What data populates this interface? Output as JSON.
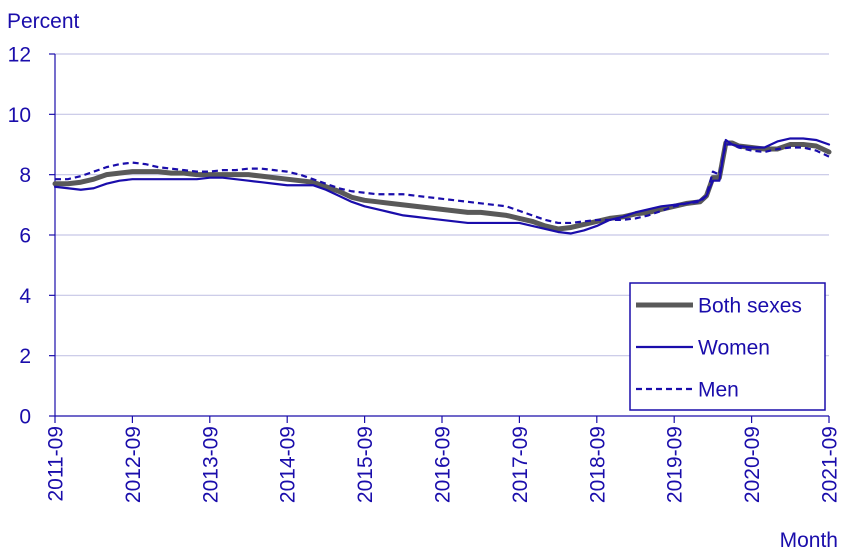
{
  "chart_data": {
    "type": "line",
    "ylabel": "Percent",
    "xlabel": "Month",
    "ylim": [
      0,
      12
    ],
    "yticks": [
      "0",
      "2",
      "4",
      "6",
      "8",
      "10",
      "12"
    ],
    "xticks": [
      "2011-09",
      "2012-09",
      "2013-09",
      "2014-09",
      "2015-09",
      "2016-09",
      "2017-09",
      "2018-09",
      "2019-09",
      "2020-09",
      "2021-09"
    ],
    "grid": true,
    "legend_position": "bottom-right",
    "series": [
      {
        "name": "Both sexes",
        "color": "#595959",
        "style": "thick",
        "points": [
          [
            "2011-09",
            7.7
          ],
          [
            "2011-11",
            7.7
          ],
          [
            "2012-01",
            7.75
          ],
          [
            "2012-03",
            7.85
          ],
          [
            "2012-05",
            8.0
          ],
          [
            "2012-07",
            8.05
          ],
          [
            "2012-09",
            8.1
          ],
          [
            "2012-11",
            8.1
          ],
          [
            "2013-01",
            8.1
          ],
          [
            "2013-03",
            8.05
          ],
          [
            "2013-05",
            8.05
          ],
          [
            "2013-07",
            8.0
          ],
          [
            "2013-09",
            8.0
          ],
          [
            "2013-11",
            8.0
          ],
          [
            "2014-01",
            8.0
          ],
          [
            "2014-03",
            8.0
          ],
          [
            "2014-05",
            7.95
          ],
          [
            "2014-07",
            7.9
          ],
          [
            "2014-09",
            7.85
          ],
          [
            "2014-11",
            7.8
          ],
          [
            "2015-01",
            7.75
          ],
          [
            "2015-03",
            7.6
          ],
          [
            "2015-05",
            7.45
          ],
          [
            "2015-07",
            7.25
          ],
          [
            "2015-09",
            7.15
          ],
          [
            "2015-11",
            7.1
          ],
          [
            "2016-01",
            7.05
          ],
          [
            "2016-03",
            7.0
          ],
          [
            "2016-05",
            6.95
          ],
          [
            "2016-07",
            6.9
          ],
          [
            "2016-09",
            6.85
          ],
          [
            "2016-11",
            6.8
          ],
          [
            "2017-01",
            6.75
          ],
          [
            "2017-03",
            6.75
          ],
          [
            "2017-05",
            6.7
          ],
          [
            "2017-07",
            6.65
          ],
          [
            "2017-09",
            6.55
          ],
          [
            "2017-11",
            6.45
          ],
          [
            "2018-01",
            6.3
          ],
          [
            "2018-03",
            6.2
          ],
          [
            "2018-05",
            6.25
          ],
          [
            "2018-07",
            6.35
          ],
          [
            "2018-09",
            6.45
          ],
          [
            "2018-11",
            6.55
          ],
          [
            "2019-01",
            6.6
          ],
          [
            "2019-03",
            6.7
          ],
          [
            "2019-05",
            6.75
          ],
          [
            "2019-07",
            6.85
          ],
          [
            "2019-09",
            6.95
          ],
          [
            "2019-11",
            7.05
          ],
          [
            "2020-01",
            7.1
          ],
          [
            "2020-02",
            7.3
          ],
          [
            "2020-03",
            7.9
          ],
          [
            "2020-04",
            7.9
          ],
          [
            "2020-05",
            9.05
          ],
          [
            "2020-06",
            9.05
          ],
          [
            "2020-07",
            8.95
          ],
          [
            "2020-09",
            8.9
          ],
          [
            "2020-11",
            8.85
          ],
          [
            "2021-01",
            8.85
          ],
          [
            "2021-03",
            9.0
          ],
          [
            "2021-05",
            9.0
          ],
          [
            "2021-07",
            8.95
          ],
          [
            "2021-09",
            8.75
          ]
        ]
      },
      {
        "name": "Women",
        "color": "#1a0dab",
        "style": "solid",
        "points": [
          [
            "2011-09",
            7.6
          ],
          [
            "2011-11",
            7.55
          ],
          [
            "2012-01",
            7.5
          ],
          [
            "2012-03",
            7.55
          ],
          [
            "2012-05",
            7.7
          ],
          [
            "2012-07",
            7.8
          ],
          [
            "2012-09",
            7.85
          ],
          [
            "2012-11",
            7.85
          ],
          [
            "2013-01",
            7.85
          ],
          [
            "2013-03",
            7.85
          ],
          [
            "2013-05",
            7.85
          ],
          [
            "2013-07",
            7.85
          ],
          [
            "2013-09",
            7.9
          ],
          [
            "2013-11",
            7.9
          ],
          [
            "2014-01",
            7.85
          ],
          [
            "2014-03",
            7.8
          ],
          [
            "2014-05",
            7.75
          ],
          [
            "2014-07",
            7.7
          ],
          [
            "2014-09",
            7.65
          ],
          [
            "2014-11",
            7.65
          ],
          [
            "2015-01",
            7.65
          ],
          [
            "2015-03",
            7.5
          ],
          [
            "2015-05",
            7.3
          ],
          [
            "2015-07",
            7.1
          ],
          [
            "2015-09",
            6.95
          ],
          [
            "2015-11",
            6.85
          ],
          [
            "2016-01",
            6.75
          ],
          [
            "2016-03",
            6.65
          ],
          [
            "2016-05",
            6.6
          ],
          [
            "2016-07",
            6.55
          ],
          [
            "2016-09",
            6.5
          ],
          [
            "2016-11",
            6.45
          ],
          [
            "2017-01",
            6.4
          ],
          [
            "2017-03",
            6.4
          ],
          [
            "2017-05",
            6.4
          ],
          [
            "2017-07",
            6.4
          ],
          [
            "2017-09",
            6.4
          ],
          [
            "2017-11",
            6.3
          ],
          [
            "2018-01",
            6.2
          ],
          [
            "2018-03",
            6.1
          ],
          [
            "2018-05",
            6.05
          ],
          [
            "2018-07",
            6.15
          ],
          [
            "2018-09",
            6.3
          ],
          [
            "2018-11",
            6.5
          ],
          [
            "2019-01",
            6.6
          ],
          [
            "2019-03",
            6.75
          ],
          [
            "2019-05",
            6.85
          ],
          [
            "2019-07",
            6.95
          ],
          [
            "2019-09",
            7.0
          ],
          [
            "2019-11",
            7.05
          ],
          [
            "2020-01",
            7.15
          ],
          [
            "2020-02",
            7.3
          ],
          [
            "2020-03",
            7.8
          ],
          [
            "2020-04",
            7.8
          ],
          [
            "2020-05",
            9.15
          ],
          [
            "2020-06",
            9.0
          ],
          [
            "2020-07",
            8.95
          ],
          [
            "2020-09",
            8.9
          ],
          [
            "2020-11",
            8.9
          ],
          [
            "2021-01",
            9.1
          ],
          [
            "2021-03",
            9.2
          ],
          [
            "2021-05",
            9.2
          ],
          [
            "2021-07",
            9.15
          ],
          [
            "2021-09",
            9.0
          ]
        ]
      },
      {
        "name": "Men",
        "color": "#1a0dab",
        "style": "dashed",
        "points": [
          [
            "2011-09",
            7.85
          ],
          [
            "2011-11",
            7.85
          ],
          [
            "2012-01",
            7.95
          ],
          [
            "2012-03",
            8.1
          ],
          [
            "2012-05",
            8.25
          ],
          [
            "2012-07",
            8.35
          ],
          [
            "2012-09",
            8.4
          ],
          [
            "2012-11",
            8.35
          ],
          [
            "2013-01",
            8.25
          ],
          [
            "2013-03",
            8.2
          ],
          [
            "2013-05",
            8.15
          ],
          [
            "2013-07",
            8.1
          ],
          [
            "2013-09",
            8.1
          ],
          [
            "2013-11",
            8.15
          ],
          [
            "2014-01",
            8.15
          ],
          [
            "2014-03",
            8.2
          ],
          [
            "2014-05",
            8.2
          ],
          [
            "2014-07",
            8.15
          ],
          [
            "2014-09",
            8.1
          ],
          [
            "2014-11",
            8.0
          ],
          [
            "2015-01",
            7.85
          ],
          [
            "2015-03",
            7.7
          ],
          [
            "2015-05",
            7.55
          ],
          [
            "2015-07",
            7.45
          ],
          [
            "2015-09",
            7.4
          ],
          [
            "2015-11",
            7.35
          ],
          [
            "2016-01",
            7.35
          ],
          [
            "2016-03",
            7.35
          ],
          [
            "2016-05",
            7.3
          ],
          [
            "2016-07",
            7.25
          ],
          [
            "2016-09",
            7.2
          ],
          [
            "2016-11",
            7.15
          ],
          [
            "2017-01",
            7.1
          ],
          [
            "2017-03",
            7.05
          ],
          [
            "2017-05",
            7.0
          ],
          [
            "2017-07",
            6.95
          ],
          [
            "2017-09",
            6.8
          ],
          [
            "2017-11",
            6.65
          ],
          [
            "2018-01",
            6.5
          ],
          [
            "2018-03",
            6.4
          ],
          [
            "2018-05",
            6.4
          ],
          [
            "2018-07",
            6.45
          ],
          [
            "2018-09",
            6.5
          ],
          [
            "2018-11",
            6.5
          ],
          [
            "2019-01",
            6.5
          ],
          [
            "2019-03",
            6.55
          ],
          [
            "2019-05",
            6.65
          ],
          [
            "2019-07",
            6.8
          ],
          [
            "2019-09",
            6.95
          ],
          [
            "2019-11",
            7.05
          ],
          [
            "2020-01",
            7.1
          ],
          [
            "2020-02",
            7.3
          ],
          [
            "2020-03",
            8.1
          ],
          [
            "2020-04",
            8.0
          ],
          [
            "2020-05",
            9.0
          ],
          [
            "2020-06",
            9.0
          ],
          [
            "2020-07",
            8.9
          ],
          [
            "2020-09",
            8.8
          ],
          [
            "2020-11",
            8.75
          ],
          [
            "2021-01",
            8.85
          ],
          [
            "2021-03",
            8.9
          ],
          [
            "2021-05",
            8.9
          ],
          [
            "2021-07",
            8.8
          ],
          [
            "2021-09",
            8.6
          ]
        ]
      }
    ]
  }
}
